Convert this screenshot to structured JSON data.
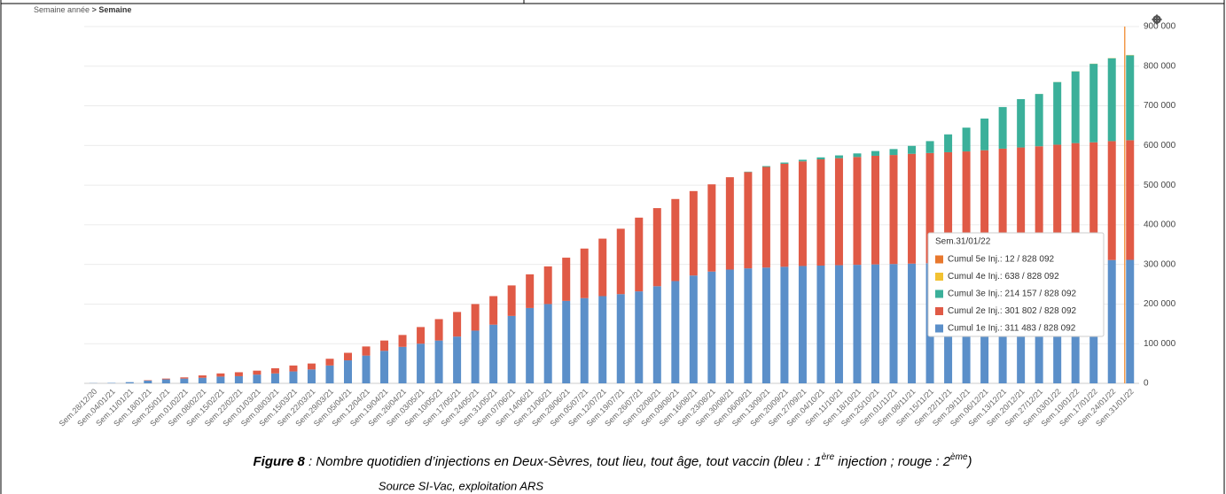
{
  "breadcrumb": {
    "parent": "Semaine année",
    "separator": ">",
    "current": "Semaine"
  },
  "chart_data": {
    "type": "stacked_bar",
    "categories": [
      "Sem.28/12/20",
      "Sem.04/01/21",
      "Sem.11/01/21",
      "Sem.18/01/21",
      "Sem.25/01/21",
      "Sem.01/02/21",
      "Sem.08/02/21",
      "Sem.15/02/21",
      "Sem.22/02/21",
      "Sem.01/03/21",
      "Sem.08/03/21",
      "Sem.15/03/21",
      "Sem.22/03/21",
      "Sem.29/03/21",
      "Sem.05/04/21",
      "Sem.12/04/21",
      "Sem.19/04/21",
      "Sem.26/04/21",
      "Sem.03/05/21",
      "Sem.10/05/21",
      "Sem.17/05/21",
      "Sem.24/05/21",
      "Sem.31/05/21",
      "Sem.07/06/21",
      "Sem.14/06/21",
      "Sem.21/06/21",
      "Sem.28/06/21",
      "Sem.05/07/21",
      "Sem.12/07/21",
      "Sem.19/07/21",
      "Sem.26/07/21",
      "Sem.02/08/21",
      "Sem.09/08/21",
      "Sem.16/08/21",
      "Sem.23/08/21",
      "Sem.30/08/21",
      "Sem.06/09/21",
      "Sem.13/09/21",
      "Sem.20/09/21",
      "Sem.27/09/21",
      "Sem.04/10/21",
      "Sem.11/10/21",
      "Sem.18/10/21",
      "Sem.25/10/21",
      "Sem.01/11/21",
      "Sem.08/11/21",
      "Sem.15/11/21",
      "Sem.22/11/21",
      "Sem.29/11/21",
      "Sem.06/12/21",
      "Sem.13/12/21",
      "Sem.20/12/21",
      "Sem.27/12/21",
      "Sem.03/01/22",
      "Sem.10/01/22",
      "Sem.17/01/22",
      "Sem.24/01/22",
      "Sem.31/01/22"
    ],
    "series": [
      {
        "color": "#5b8fc9",
        "values": [
          500,
          1000,
          3000,
          7000,
          10000,
          12000,
          14000,
          17000,
          18000,
          22000,
          25000,
          30000,
          35000,
          45000,
          58000,
          70000,
          82000,
          92000,
          100000,
          108000,
          118000,
          133000,
          148000,
          170000,
          190000,
          200000,
          208000,
          215000,
          220000,
          225000,
          232000,
          245000,
          258000,
          272000,
          282000,
          287000,
          290000,
          292000,
          294000,
          296000,
          297000,
          298000,
          299000,
          300000,
          301000,
          302000,
          303000,
          304000,
          305000,
          306000,
          307000,
          307000,
          308000,
          309000,
          310000,
          310000,
          311000,
          311483
        ]
      },
      {
        "color": "#e05a46",
        "values": [
          0,
          0,
          0,
          1000,
          2000,
          3000,
          6000,
          8000,
          10000,
          10000,
          13000,
          15000,
          15000,
          17000,
          19000,
          23000,
          26000,
          30000,
          42000,
          54000,
          62000,
          67000,
          72000,
          77000,
          85000,
          95000,
          109000,
          125000,
          145000,
          165000,
          186000,
          197000,
          207000,
          213000,
          220000,
          233000,
          243000,
          254000,
          260000,
          264000,
          268000,
          270000,
          272000,
          274000,
          275000,
          277000,
          278000,
          279000,
          280000,
          282000,
          285000,
          288000,
          290000,
          293000,
          296000,
          298000,
          300000,
          301802
        ]
      },
      {
        "color": "#3bb09a",
        "values": [
          0,
          0,
          0,
          0,
          0,
          0,
          0,
          0,
          0,
          0,
          0,
          0,
          0,
          0,
          0,
          0,
          0,
          0,
          0,
          0,
          0,
          0,
          0,
          0,
          0,
          0,
          0,
          0,
          0,
          0,
          0,
          0,
          0,
          0,
          0,
          0,
          1000,
          2000,
          3000,
          4000,
          5000,
          7000,
          9000,
          12000,
          15000,
          20000,
          30000,
          45000,
          60000,
          80000,
          105000,
          122000,
          132000,
          158000,
          181000,
          198000,
          209000,
          214157
        ]
      },
      {
        "color": "#f2c232",
        "values": [
          0,
          0,
          0,
          0,
          0,
          0,
          0,
          0,
          0,
          0,
          0,
          0,
          0,
          0,
          0,
          0,
          0,
          0,
          0,
          0,
          0,
          0,
          0,
          0,
          0,
          0,
          0,
          0,
          0,
          0,
          0,
          0,
          0,
          0,
          0,
          0,
          0,
          0,
          0,
          0,
          0,
          0,
          0,
          0,
          0,
          0,
          0,
          0,
          0,
          0,
          0,
          0,
          100,
          200,
          300,
          400,
          500,
          638
        ]
      },
      {
        "color": "#e8782e",
        "values": [
          0,
          0,
          0,
          0,
          0,
          0,
          0,
          0,
          0,
          0,
          0,
          0,
          0,
          0,
          0,
          0,
          0,
          0,
          0,
          0,
          0,
          0,
          0,
          0,
          0,
          0,
          0,
          0,
          0,
          0,
          0,
          0,
          0,
          0,
          0,
          0,
          0,
          0,
          0,
          0,
          0,
          0,
          0,
          0,
          0,
          0,
          0,
          0,
          0,
          0,
          0,
          0,
          0,
          0,
          0,
          0,
          0,
          12
        ]
      }
    ],
    "ylim": [
      0,
      900000
    ],
    "yticks": [
      0,
      {
        "value": 100000,
        "label": "100 000"
      },
      {
        "value": 200000,
        "label": "200 000"
      },
      {
        "value": 300000,
        "label": "300 000"
      },
      {
        "value": 400000,
        "label": "400 000"
      },
      {
        "value": 500000,
        "label": "500 000"
      },
      {
        "value": 600000,
        "label": "600 000"
      },
      {
        "value": 700000,
        "label": "700 000"
      },
      {
        "value": 800000,
        "label": "800 000"
      },
      {
        "value": 900000,
        "label": "900 000"
      }
    ],
    "grid": true
  },
  "tooltip": {
    "title": "Sem.31/01/22",
    "items": [
      {
        "text": "Cumul 5e Inj.: 12 /  828 092",
        "color": "#e8782e"
      },
      {
        "text": "Cumul 4e Inj.: 638 /  828 092",
        "color": "#f2c232"
      },
      {
        "text": "Cumul 3e Inj.: 214 157 /  828 092",
        "color": "#3bb09a"
      },
      {
        "text": "Cumul 2e Inj.: 301 802 /  828 092",
        "color": "#e05a46"
      },
      {
        "text": "Cumul 1e Inj.: 311 483 /  828 092",
        "color": "#5b8fc9"
      }
    ]
  },
  "caption": {
    "label": "Figure 8",
    "text_1": " : Nombre quotidien d’injections en Deux-Sèvres, tout lieu, tout âge, tout vaccin (bleu : 1",
    "sup_1": "ère",
    "text_2": " injection ; rouge : 2",
    "sup_2": "ème",
    "text_3": ")",
    "source": "Source SI-Vac, exploitation ARS"
  }
}
